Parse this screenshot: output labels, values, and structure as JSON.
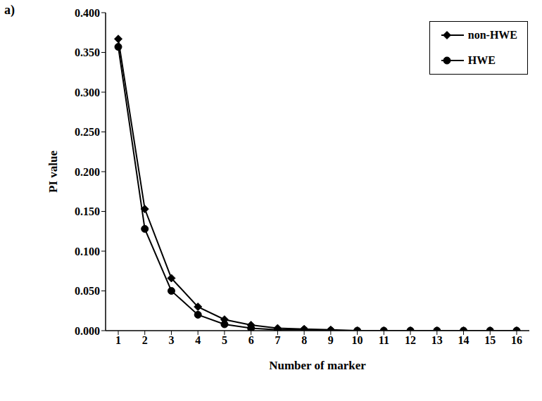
{
  "chart_data": {
    "type": "line",
    "title": "a)",
    "x_label": "Number of marker",
    "y_label": "PI value",
    "categories": [
      "1",
      "2",
      "3",
      "4",
      "5",
      "6",
      "7",
      "8",
      "9",
      "10",
      "11",
      "12",
      "13",
      "14",
      "15",
      "16"
    ],
    "series": [
      {
        "name": "non-HWE",
        "color": "#000000",
        "marker": "diamond",
        "line_style": "solid",
        "values": [
          0.367,
          0.153,
          0.066,
          0.03,
          0.014,
          0.007,
          0.003,
          0.002,
          0.001,
          0.0,
          0.0,
          0.0,
          0.0,
          0.0,
          0.0,
          0.0
        ]
      },
      {
        "name": "HWE",
        "color": "#000000",
        "marker": "circle",
        "line_style": "solid",
        "values": [
          0.357,
          0.128,
          0.05,
          0.02,
          0.008,
          0.003,
          0.001,
          0.001,
          0.0,
          0.0,
          0.0,
          0.0,
          0.0,
          0.0,
          0.0,
          0.0
        ]
      }
    ],
    "ylim": [
      0,
      0.4
    ],
    "yticks": [
      {
        "value": 0,
        "label": "0.000"
      },
      {
        "value": 0.05,
        "label": "0.050"
      },
      {
        "value": 0.1,
        "label": "0.100"
      },
      {
        "value": 0.15,
        "label": "0.150"
      },
      {
        "value": 0.2,
        "label": "0.200"
      },
      {
        "value": 0.25,
        "label": "0.250"
      },
      {
        "value": 0.3,
        "label": "0.300"
      },
      {
        "value": 0.35,
        "label": "0.350"
      },
      {
        "value": 0.4,
        "label": "0.400"
      }
    ],
    "grid": false,
    "legend": "upper right"
  }
}
